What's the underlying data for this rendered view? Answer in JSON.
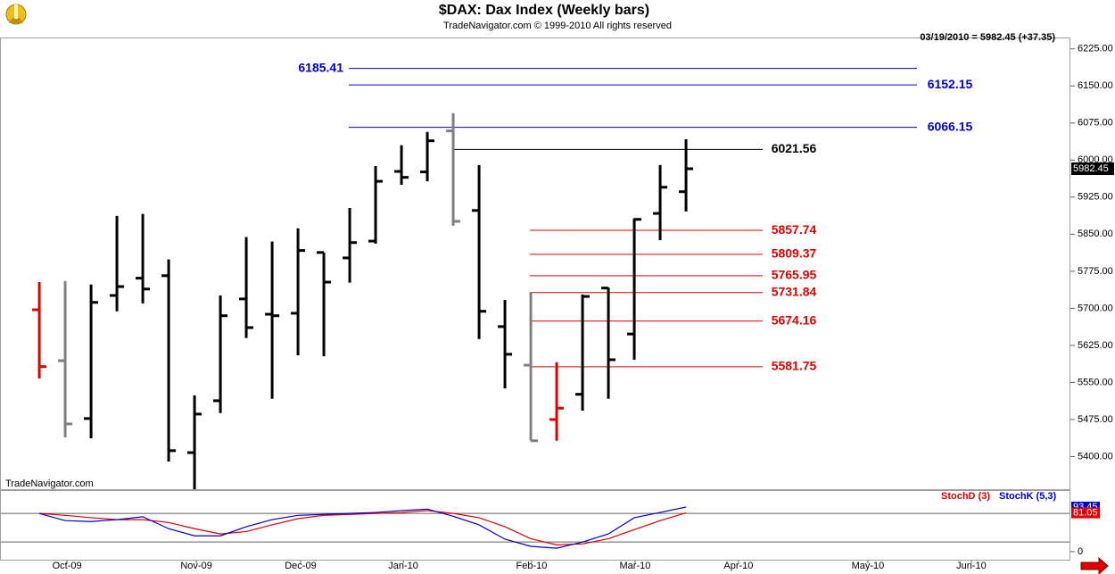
{
  "chart_data": [
    {
      "type": "ohlc",
      "title": "$DAX:  Dax Index  (Weekly bars)",
      "subtitle": "TradeNavigator.com © 1999-2010 All rights reserved",
      "quote": "03/19/2010 = 5982.45 (+37.35)",
      "watermark": "TradeNavigator.com",
      "categories": [
        null,
        null,
        null,
        null,
        null,
        null,
        null,
        null,
        null,
        null,
        null,
        null,
        null,
        null,
        null,
        null,
        null,
        null,
        null,
        null,
        null,
        null,
        null,
        null,
        null,
        null
      ],
      "open": [
        5697,
        5594,
        5477,
        5726,
        5761,
        5766,
        5408,
        5513,
        5719,
        5688,
        5690,
        5813,
        5802,
        5836,
        5977,
        5976,
        6059,
        5898,
        5663,
        5585,
        5475,
        5526,
        5741,
        5648,
        5892,
        5936
      ],
      "high": [
        5753,
        5755,
        5748,
        5887,
        5891,
        5799,
        5524,
        5726,
        5844,
        5835,
        5862,
        5813,
        5903,
        5988,
        6030,
        6057,
        6095,
        5990,
        5717,
        5733,
        5591,
        5728,
        5742,
        5882,
        5990,
        6042
      ],
      "low": [
        5558,
        5439,
        5437,
        5694,
        5710,
        5390,
        5330,
        5488,
        5640,
        5517,
        5605,
        5603,
        5752,
        5831,
        5950,
        5957,
        5867,
        5638,
        5538,
        5432,
        5432,
        5493,
        5517,
        5596,
        5838,
        5896
      ],
      "close": [
        5582,
        5466,
        5712,
        5744,
        5739,
        5412,
        5486,
        5685,
        5661,
        5685,
        5817,
        5753,
        5833,
        5957,
        5965,
        6039,
        5876,
        5694,
        5607,
        5432,
        5498,
        5724,
        5596,
        5880,
        5945,
        5982.45
      ],
      "colors": [
        "#e00000",
        "#808080",
        "#000000",
        "#000000",
        "#000000",
        "#000000",
        "#000000",
        "#000000",
        "#000000",
        "#000000",
        "#000000",
        "#000000",
        "#000000",
        "#000000",
        "#000000",
        "#000000",
        "#808080",
        "#000000",
        "#000000",
        "#808080",
        "#e00000",
        "#000000",
        "#000000",
        "#000000",
        "#000000",
        "#000000"
      ],
      "levels": [
        {
          "value": 6185.41,
          "color": "#0000cc"
        },
        {
          "value": 6152.15,
          "color": "#0000cc"
        },
        {
          "value": 6066.15,
          "color": "#0000cc"
        },
        {
          "value": 6021.56,
          "color": "#000000"
        },
        {
          "value": 5857.74,
          "color": "#e00000"
        },
        {
          "value": 5809.37,
          "color": "#e00000"
        },
        {
          "value": 5765.95,
          "color": "#e00000"
        },
        {
          "value": 5731.84,
          "color": "#e00000"
        },
        {
          "value": 5674.16,
          "color": "#e00000"
        },
        {
          "value": 5581.75,
          "color": "#e00000"
        }
      ],
      "xlim": [
        -1.52,
        39.86
      ],
      "ylim": [
        5334,
        6248
      ],
      "yticks": [
        {
          "value": 6225,
          "label": "6225.00"
        },
        {
          "value": 6150,
          "label": "6150.00"
        },
        {
          "value": 6075,
          "label": "6075.00"
        },
        {
          "value": 6000,
          "label": "6000.00"
        },
        {
          "value": 5925,
          "label": "5925.00"
        },
        {
          "value": 5850,
          "label": "5850.00"
        },
        {
          "value": 5775,
          "label": "5775.00"
        },
        {
          "value": 5700,
          "label": "5700.00"
        },
        {
          "value": 5625,
          "label": "5625.00"
        },
        {
          "value": 5550,
          "label": "5550.00"
        },
        {
          "value": 5475,
          "label": "5475.00"
        },
        {
          "value": 5400,
          "label": "5400.00"
        }
      ]
    },
    {
      "type": "line",
      "categories": [
        null,
        null,
        null,
        null,
        null,
        null,
        null,
        null,
        null,
        null,
        null,
        null,
        null,
        null,
        null,
        null,
        null,
        null,
        null,
        null,
        null,
        null,
        null,
        null,
        null,
        null
      ],
      "series": [
        {
          "name": "StochD (3)",
          "color": "#e00000",
          "values": [
            80,
            76,
            71,
            67,
            67,
            61,
            48,
            37,
            42,
            56,
            69,
            76,
            78,
            80,
            82,
            86,
            80,
            71,
            52,
            27,
            14,
            16,
            27,
            46,
            65,
            81.05
          ]
        },
        {
          "name": "StochK (5,3)",
          "color": "#0000cc",
          "values": [
            80,
            65,
            63,
            67,
            73,
            48,
            33,
            33,
            52,
            67,
            76,
            78,
            80,
            82,
            86,
            89,
            74,
            56,
            26,
            11,
            7,
            20,
            37,
            71,
            82,
            93.45
          ]
        }
      ],
      "hlines": [
        80,
        20
      ],
      "xlim": [
        -1.52,
        39.86
      ],
      "ylim": [
        -19,
        129
      ],
      "yticks": [
        0
      ],
      "xticks": [
        {
          "value": 1.07,
          "label": "Oct-09"
        },
        {
          "value": 6.07,
          "label": "Nov-09"
        },
        {
          "value": 10.1,
          "label": "Dec-09"
        },
        {
          "value": 14.07,
          "label": "Jan-10"
        },
        {
          "value": 19.03,
          "label": "Feb-10"
        },
        {
          "value": 23.03,
          "label": "Mar-10"
        },
        {
          "value": 27.03,
          "label": "Apr-10"
        },
        {
          "value": 32.03,
          "label": "May-10"
        },
        {
          "value": 36.03,
          "label": "Jun-10"
        }
      ]
    }
  ]
}
